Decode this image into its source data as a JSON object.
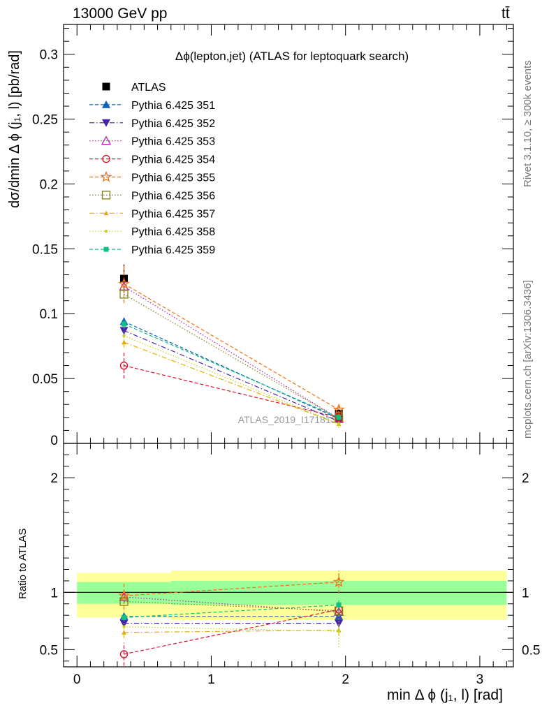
{
  "header": {
    "energy_label": "13000 GeV pp",
    "process_label": "tt̄"
  },
  "side_labels": {
    "rivet": "Rivet 3.1.10, ≥ 300k events",
    "mcplots": "mcplots.cern.ch [arXiv:1306.3436]"
  },
  "chart_data": [
    {
      "type": "scatter",
      "panel": "main",
      "title": "Δϕ(lepton,jet) (ATLAS for leptoquark search)",
      "ylabel": "dσ/dmin Δ ϕ (j₁, l) [pb/rad]",
      "xlabel": "min Δ ϕ (j₁, l) [rad]",
      "watermark": "ATLAS_2019_I1718132",
      "xlim": [
        -0.1,
        3.25
      ],
      "ylim": [
        0,
        0.323
      ],
      "yticks": [
        0,
        0.05,
        0.1,
        0.15,
        0.2,
        0.25,
        0.3
      ],
      "ytick_labels": [
        "0",
        "0.05",
        "0.1",
        "0.15",
        "0.2",
        "0.25",
        "0.3"
      ],
      "xticks": [
        0,
        1,
        2,
        3
      ],
      "bin_edges": [
        0,
        0.7,
        3.2
      ],
      "x": [
        0.35,
        1.95
      ],
      "series": [
        {
          "name": "ATLAS",
          "values": [
            0.127,
            0.023
          ],
          "errors": [
            0.011,
            0.003
          ],
          "color": "#000000",
          "marker": "square",
          "line": "none"
        },
        {
          "name": "Pythia 6.425 351",
          "values": [
            0.094,
            0.019
          ],
          "errors": [
            0.004,
            0.001
          ],
          "color": "#1060c0",
          "marker": "triangle-up",
          "line": "dashed"
        },
        {
          "name": "Pythia 6.425 352",
          "values": [
            0.087,
            0.017
          ],
          "errors": [
            0.004,
            0.001
          ],
          "color": "#4422aa",
          "marker": "triangle-down",
          "line": "dashdot"
        },
        {
          "name": "Pythia 6.425 353",
          "values": [
            0.121,
            0.019
          ],
          "errors": [
            0.005,
            0.001
          ],
          "color": "#b020b0",
          "marker": "triangle-open",
          "line": "dotted"
        },
        {
          "name": "Pythia 6.425 354",
          "values": [
            0.06,
            0.02
          ],
          "errors": [
            0.01,
            0.001
          ],
          "color": "#e0102a",
          "marker": "circle-open",
          "line": "dashed"
        },
        {
          "name": "Pythia 6.425 355",
          "values": [
            0.123,
            0.026
          ],
          "errors": [
            0.015,
            0.004
          ],
          "color": "#f07010",
          "marker": "star-open",
          "line": "dashed"
        },
        {
          "name": "Pythia 6.425 356",
          "values": [
            0.115,
            0.019
          ],
          "errors": [
            0.005,
            0.001
          ],
          "color": "#808010",
          "marker": "square-open",
          "line": "dotted"
        },
        {
          "name": "Pythia 6.425 357",
          "values": [
            0.078,
            0.015
          ],
          "errors": [
            0.004,
            0.001
          ],
          "color": "#e0b000",
          "marker": "triangle-small",
          "line": "dashdot"
        },
        {
          "name": "Pythia 6.425 358",
          "values": [
            0.083,
            0.015
          ],
          "errors": [
            0.004,
            0.003
          ],
          "color": "#c8d020",
          "marker": "dot",
          "line": "dotted"
        },
        {
          "name": "Pythia 6.425 359",
          "values": [
            0.092,
            0.02
          ],
          "errors": [
            0.004,
            0.001
          ],
          "color": "#10c080",
          "marker": "square-small",
          "line": "dashed"
        }
      ]
    },
    {
      "type": "scatter",
      "panel": "ratio",
      "ylabel": "Ratio to ATLAS",
      "xlim": [
        -0.1,
        3.25
      ],
      "ylim": [
        0.35,
        2.3
      ],
      "yticks": [
        0.5,
        1,
        2
      ],
      "ytick_labels": [
        "0.5",
        "1",
        "2"
      ],
      "xticks": [
        0,
        1,
        2,
        3
      ],
      "xtick_labels": [
        "0",
        "1",
        "2",
        "3"
      ],
      "bands": {
        "bins": [
          [
            0,
            0.7
          ],
          [
            0.7,
            3.2
          ]
        ],
        "yellow": [
          [
            0.78,
            1.17
          ],
          [
            0.76,
            1.19
          ]
        ],
        "green": [
          [
            0.9,
            1.09
          ],
          [
            0.89,
            1.1
          ]
        ]
      },
      "x": [
        0.35,
        1.95
      ],
      "series": [
        {
          "name": "ATLAS",
          "values": [
            1.0,
            1.0
          ]
        },
        {
          "name": "Pythia 6.425 351",
          "values": [
            0.79,
            0.79
          ],
          "errors": [
            0.03,
            0.06
          ]
        },
        {
          "name": "Pythia 6.425 352",
          "values": [
            0.73,
            0.73
          ],
          "errors": [
            0.03,
            0.06
          ]
        },
        {
          "name": "Pythia 6.425 353",
          "values": [
            0.96,
            0.83
          ],
          "errors": [
            0.03,
            0.05
          ]
        },
        {
          "name": "Pythia 6.425 354",
          "values": [
            0.46,
            0.85
          ],
          "errors": [
            0.1,
            0.06
          ]
        },
        {
          "name": "Pythia 6.425 355",
          "values": [
            0.97,
            1.09
          ],
          "errors": [
            0.12,
            0.1
          ]
        },
        {
          "name": "Pythia 6.425 356",
          "values": [
            0.92,
            0.84
          ],
          "errors": [
            0.04,
            0.05
          ]
        },
        {
          "name": "Pythia 6.425 357",
          "values": [
            0.65,
            0.67
          ],
          "errors": [
            0.05,
            0.05
          ]
        },
        {
          "name": "Pythia 6.425 358",
          "values": [
            0.7,
            0.66
          ],
          "errors": [
            0.05,
            0.14
          ]
        },
        {
          "name": "Pythia 6.425 359",
          "values": [
            0.78,
            0.89
          ],
          "errors": [
            0.03,
            0.04
          ]
        }
      ]
    }
  ]
}
